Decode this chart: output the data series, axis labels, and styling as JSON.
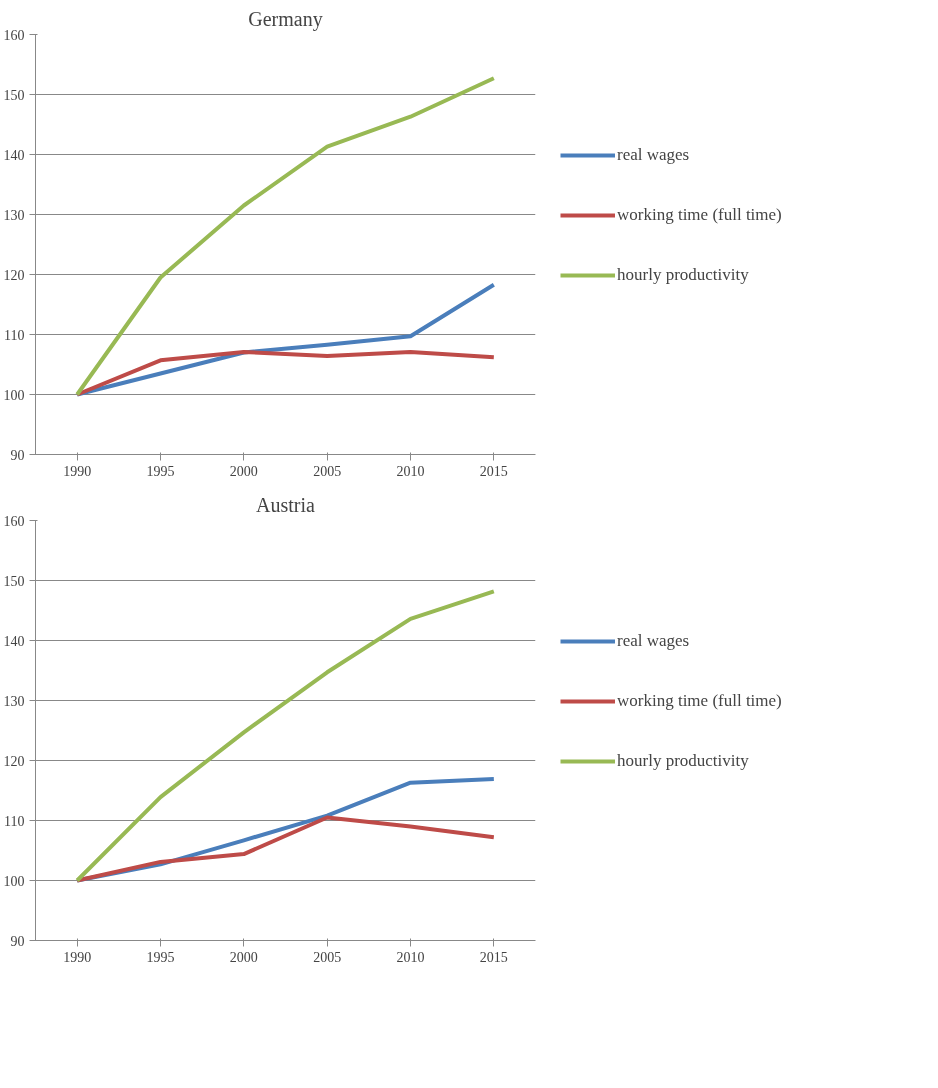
{
  "chart_data": [
    {
      "type": "line",
      "title": "Germany",
      "categories": [
        "1990",
        "1995",
        "2000",
        "2005",
        "2010",
        "2015"
      ],
      "ylim": [
        90,
        160
      ],
      "yticks": [
        90,
        100,
        110,
        120,
        130,
        140,
        150,
        160
      ],
      "grid": "y",
      "legend": "right",
      "marker": "none",
      "line_style": "solid",
      "series": [
        {
          "name": "real wages",
          "color": "#4a7ebb",
          "values": [
            100,
            103.5,
            107.0,
            108.3,
            109.7,
            118.3
          ]
        },
        {
          "name": "working time (full time)",
          "color": "#be4b48",
          "values": [
            100,
            105.7,
            107.1,
            106.4,
            107.1,
            106.2
          ]
        },
        {
          "name": "hourly productivity",
          "color": "#98b954",
          "values": [
            100,
            119.5,
            131.5,
            141.3,
            146.3,
            152.7
          ]
        }
      ]
    },
    {
      "type": "line",
      "title": "Austria",
      "categories": [
        "1990",
        "1995",
        "2000",
        "2005",
        "2010",
        "2015"
      ],
      "ylim": [
        90,
        160
      ],
      "yticks": [
        90,
        100,
        110,
        120,
        130,
        140,
        150,
        160
      ],
      "grid": "y",
      "legend": "right",
      "marker": "none",
      "line_style": "solid",
      "series": [
        {
          "name": "real wages",
          "color": "#4a7ebb",
          "values": [
            100,
            102.7,
            106.7,
            110.8,
            116.3,
            116.9
          ]
        },
        {
          "name": "working time (full time)",
          "color": "#be4b48",
          "values": [
            100,
            103.1,
            104.4,
            110.5,
            109.0,
            107.2
          ]
        },
        {
          "name": "hourly productivity",
          "color": "#98b954",
          "values": [
            100,
            113.9,
            124.7,
            134.7,
            143.6,
            148.2
          ]
        }
      ]
    }
  ]
}
